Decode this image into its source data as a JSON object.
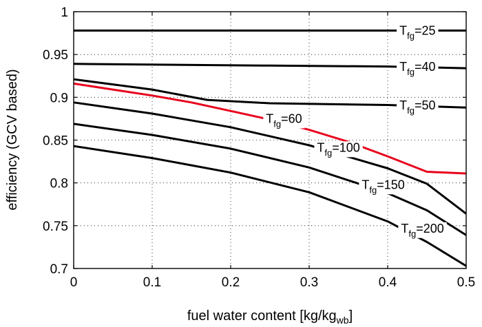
{
  "chart_data": {
    "type": "line",
    "title": "",
    "xlabel": "fuel water content [kg/kg",
    "xlabel_sub": "wb",
    "xlabel_suffix": "]",
    "ylabel": "efficiency (GCV based)",
    "xlim": [
      0,
      0.5
    ],
    "ylim": [
      0.7,
      1.0
    ],
    "xticks": [
      "0",
      "0.1",
      "0.2",
      "0.3",
      "0.4",
      "0.5"
    ],
    "yticks": [
      "0.7",
      "0.75",
      "0.8",
      "0.85",
      "0.9",
      "0.95",
      "1"
    ],
    "grid": true,
    "label_prefix": "T",
    "label_sub": "fg",
    "series": [
      {
        "name": "=25",
        "color": "#000000",
        "label_x": 0.415,
        "points": [
          [
            0,
            0.978
          ],
          [
            0.5,
            0.978
          ]
        ]
      },
      {
        "name": "=40",
        "color": "#000000",
        "label_x": 0.415,
        "points": [
          [
            0,
            0.939
          ],
          [
            0.25,
            0.937
          ],
          [
            0.4,
            0.936
          ],
          [
            0.5,
            0.934
          ]
        ]
      },
      {
        "name": "=50",
        "color": "#000000",
        "label_x": 0.415,
        "points": [
          [
            0,
            0.921
          ],
          [
            0.1,
            0.909
          ],
          [
            0.17,
            0.897
          ],
          [
            0.25,
            0.893
          ],
          [
            0.4,
            0.891
          ],
          [
            0.5,
            0.888
          ]
        ]
      },
      {
        "name": "=60",
        "color": "#e8001c",
        "label_x": 0.245,
        "points": [
          [
            0,
            0.916
          ],
          [
            0.05,
            0.909
          ],
          [
            0.1,
            0.902
          ],
          [
            0.15,
            0.894
          ],
          [
            0.2,
            0.884
          ],
          [
            0.25,
            0.874
          ],
          [
            0.3,
            0.862
          ],
          [
            0.35,
            0.848
          ],
          [
            0.4,
            0.831
          ],
          [
            0.45,
            0.813
          ],
          [
            0.5,
            0.811
          ]
        ]
      },
      {
        "name": "=100",
        "color": "#000000",
        "label_x": 0.31,
        "points": [
          [
            0,
            0.894
          ],
          [
            0.1,
            0.881
          ],
          [
            0.2,
            0.865
          ],
          [
            0.3,
            0.844
          ],
          [
            0.4,
            0.817
          ],
          [
            0.45,
            0.799
          ],
          [
            0.5,
            0.764
          ]
        ]
      },
      {
        "name": "=150",
        "color": "#000000",
        "label_x": 0.367,
        "points": [
          [
            0,
            0.869
          ],
          [
            0.1,
            0.856
          ],
          [
            0.2,
            0.84
          ],
          [
            0.3,
            0.818
          ],
          [
            0.4,
            0.788
          ],
          [
            0.45,
            0.768
          ],
          [
            0.5,
            0.739
          ]
        ]
      },
      {
        "name": "=200",
        "color": "#000000",
        "label_x": 0.417,
        "points": [
          [
            0,
            0.843
          ],
          [
            0.1,
            0.829
          ],
          [
            0.2,
            0.812
          ],
          [
            0.3,
            0.789
          ],
          [
            0.4,
            0.755
          ],
          [
            0.45,
            0.731
          ],
          [
            0.5,
            0.703
          ]
        ]
      }
    ]
  }
}
